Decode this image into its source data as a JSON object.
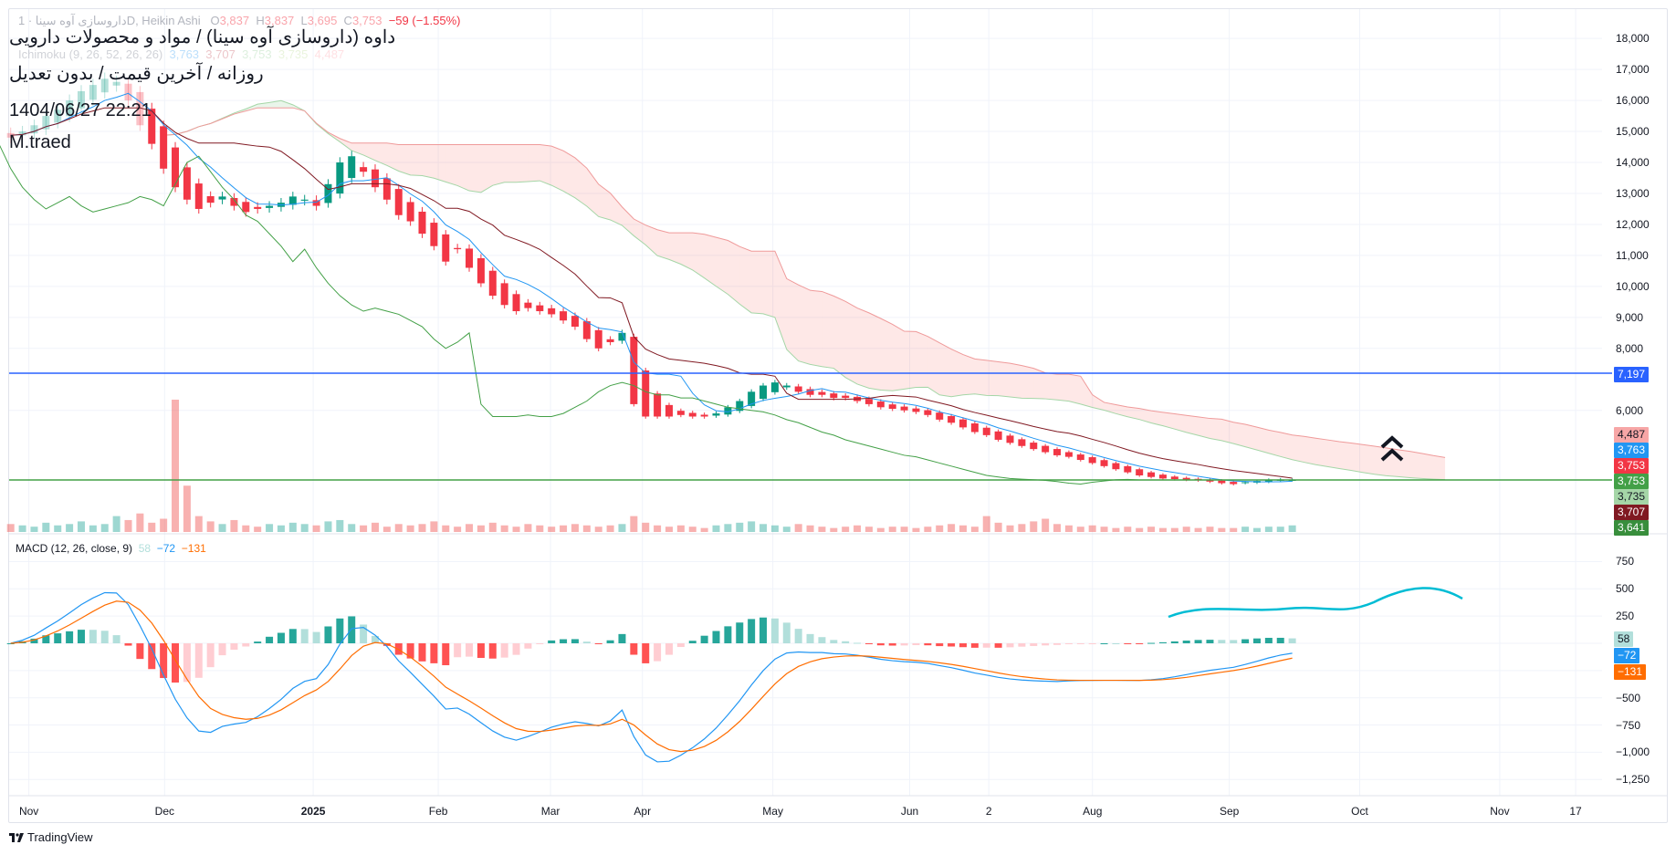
{
  "legend": {
    "symbol": "داروسازی آوه سینا · 1D, Heikin Ashi",
    "o_label": "O",
    "o": "3,837",
    "h_label": "H",
    "h": "3,837",
    "l_label": "L",
    "l": "3,695",
    "c_label": "C",
    "c": "3,753",
    "change": "−59 (−1.55%)",
    "ichimoku": "Ichimoku (9, 26, 52, 26, 26)",
    "ichimoku_values": [
      "3,763",
      "3,707",
      "3,753",
      "3,735",
      "4,487"
    ]
  },
  "overlay": {
    "title": "داوه (داروسازی آوه سینا) / مواد و محصولات دارویی",
    "subtitle": "روزانه / آخرین قیمت / بدون تعدیل",
    "datetime": "1404/06/27 22:21",
    "author": "M.traed"
  },
  "price_axis": {
    "ticks": [
      "18,000",
      "17,000",
      "16,000",
      "15,000",
      "14,000",
      "13,000",
      "12,000",
      "11,000",
      "10,000",
      "9,000",
      "8,000",
      "6,000"
    ],
    "tick_values": [
      18000,
      17000,
      16000,
      15000,
      14000,
      13000,
      12000,
      11000,
      10000,
      9000,
      8000,
      6000
    ]
  },
  "badges": [
    {
      "text": "7,197",
      "bg": "#2962ff",
      "fg": "#ffffff"
    },
    {
      "text": "4,487",
      "bg": "#f7a6a6",
      "fg": "#131722"
    },
    {
      "text": "3,763",
      "bg": "#2196f3",
      "fg": "#ffffff"
    },
    {
      "text": "3,753",
      "bg": "#f23645",
      "fg": "#ffffff"
    },
    {
      "text": "3,753",
      "bg": "#43a047",
      "fg": "#ffffff"
    },
    {
      "text": "3,735",
      "bg": "#a5d6a7",
      "fg": "#131722"
    },
    {
      "text": "3,707",
      "bg": "#801922",
      "fg": "#ffffff"
    },
    {
      "text": "3,641",
      "bg": "#388e3c",
      "fg": "#ffffff"
    }
  ],
  "macd": {
    "label": "MACD (12, 26, close, 9)",
    "hist": "58",
    "macd": "−72",
    "signal": "−131",
    "ticks": [
      "750",
      "500",
      "250",
      "−500",
      "−750",
      "−1,000",
      "−1,250"
    ],
    "tick_values": [
      750,
      500,
      250,
      -500,
      -750,
      -1000,
      -1250
    ],
    "badges": [
      {
        "text": "58",
        "bg": "#b2dfdb",
        "fg": "#131722"
      },
      {
        "text": "−72",
        "bg": "#2196f3",
        "fg": "#ffffff"
      },
      {
        "text": "−131",
        "bg": "#ff6d00",
        "fg": "#ffffff"
      }
    ]
  },
  "time_axis": [
    {
      "label": "Nov",
      "x": 27
    },
    {
      "label": "Dec",
      "x": 154
    },
    {
      "label": "2025",
      "x": 293,
      "bold": true
    },
    {
      "label": "Feb",
      "x": 410
    },
    {
      "label": "Mar",
      "x": 515
    },
    {
      "label": "Apr",
      "x": 601
    },
    {
      "label": "May",
      "x": 723
    },
    {
      "label": "Jun",
      "x": 851
    },
    {
      "label": "2",
      "x": 925
    },
    {
      "label": "Aug",
      "x": 1022
    },
    {
      "label": "Sep",
      "x": 1150
    },
    {
      "label": "Oct",
      "x": 1272
    },
    {
      "label": "Nov",
      "x": 1403
    },
    {
      "label": "17",
      "x": 1474
    }
  ],
  "branding": "TradingView",
  "colors": {
    "up": "#089981",
    "down": "#f23645",
    "tenkan": "#2196f3",
    "kijun": "#801922",
    "chikou": "#43a047",
    "spanA": "#a5d6a7",
    "spanB": "#ef9a9a",
    "hline_blue": "#2962ff",
    "hline_green": "#43a047"
  },
  "chart_data": {
    "type": "candlestick",
    "title": "داروسازی آوه سینا · 1D, Heikin Ashi",
    "horizontal_lines": [
      7197,
      3753
    ],
    "close": [
      14800,
      15000,
      15200,
      15500,
      15700,
      16000,
      16300,
      16500,
      16700,
      16600,
      16000,
      15200,
      14600,
      13800,
      13200,
      12800,
      12500,
      12700,
      12900,
      12600,
      12400,
      12500,
      12600,
      12700,
      12900,
      12800,
      12600,
      13300,
      14000,
      14200,
      13700,
      13200,
      12800,
      12300,
      12100,
      11700,
      11300,
      10800,
      11200,
      10600,
      10100,
      9700,
      9400,
      9200,
      9300,
      9200,
      9100,
      8900,
      8700,
      8300,
      8000,
      8200,
      8500,
      6200,
      5800,
      5800,
      5800,
      5850,
      5800,
      5800,
      5900,
      6100,
      6300,
      6600,
      6800,
      6900,
      6800,
      6600,
      6500,
      6500,
      6400,
      6400,
      6300,
      6200,
      6100,
      6050,
      6000,
      5950,
      5850,
      5700,
      5600,
      5450,
      5300,
      5200,
      5050,
      4950,
      4850,
      4750,
      4650,
      4550,
      4500,
      4400,
      4300,
      4200,
      4100,
      4000,
      3900,
      3850,
      3800,
      3780,
      3760,
      3740,
      3700,
      3650,
      3620,
      3680,
      3720,
      3760,
      3770,
      3753
    ],
    "volume": [
      6,
      5,
      4,
      7,
      5,
      6,
      8,
      5,
      6,
      12,
      9,
      14,
      7,
      10,
      100,
      35,
      12,
      8,
      6,
      9,
      5,
      4,
      6,
      5,
      7,
      6,
      5,
      8,
      9,
      6,
      5,
      7,
      4,
      6,
      5,
      6,
      8,
      5,
      4,
      6,
      5,
      7,
      5,
      4,
      6,
      5,
      4,
      5,
      6,
      5,
      4,
      5,
      6,
      12,
      7,
      5,
      4,
      5,
      4,
      3,
      5,
      6,
      7,
      8,
      6,
      5,
      4,
      6,
      5,
      4,
      3,
      4,
      5,
      4,
      3,
      4,
      4,
      3,
      4,
      5,
      6,
      5,
      4,
      12,
      7,
      5,
      6,
      8,
      10,
      6,
      5,
      4,
      5,
      4,
      3,
      4,
      3,
      4,
      3,
      3,
      4,
      3,
      4,
      3,
      3,
      4,
      3,
      4,
      4,
      5
    ],
    "ylim": [
      1000,
      18000
    ],
    "macd_ylim": [
      -1250,
      750
    ]
  }
}
